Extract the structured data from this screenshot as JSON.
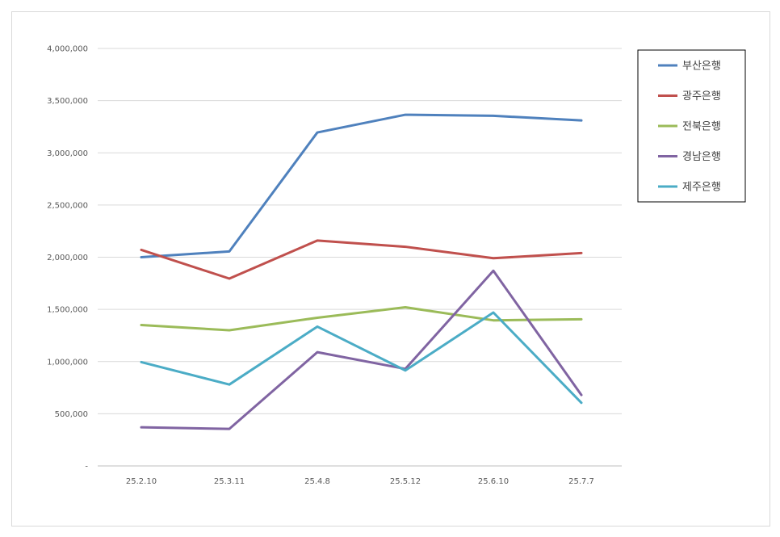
{
  "chart_data": {
    "type": "line",
    "title": "",
    "xlabel": "",
    "ylabel": "",
    "categories": [
      "25.2.10",
      "25.3.11",
      "25.4.8",
      "25.5.12",
      "25.6.10",
      "25.7.7"
    ],
    "ylim": [
      0,
      4000000
    ],
    "yticks": [
      0,
      500000,
      1000000,
      1500000,
      2000000,
      2500000,
      3000000,
      3500000,
      4000000
    ],
    "ytick_labels": [
      "-",
      "500,000",
      "1,000,000",
      "1,500,000",
      "2,000,000",
      "2,500,000",
      "3,000,000",
      "3,500,000",
      "4,000,000"
    ],
    "grid": true,
    "legend_position": "top-right",
    "series": [
      {
        "name": "부산은행",
        "color": "#4F81BD",
        "values": [
          2000000,
          2055000,
          3195000,
          3365000,
          3355000,
          3310000
        ]
      },
      {
        "name": "광주은행",
        "color": "#C0504D",
        "values": [
          2070000,
          1795000,
          2160000,
          2100000,
          1990000,
          2040000
        ]
      },
      {
        "name": "전북은행",
        "color": "#9BBB59",
        "values": [
          1350000,
          1300000,
          1420000,
          1520000,
          1395000,
          1405000
        ]
      },
      {
        "name": "경남은행",
        "color": "#8064A2",
        "values": [
          370000,
          355000,
          1090000,
          930000,
          1870000,
          680000
        ]
      },
      {
        "name": "제주은행",
        "color": "#4BACC6",
        "values": [
          995000,
          780000,
          1335000,
          915000,
          1470000,
          605000
        ]
      }
    ]
  }
}
